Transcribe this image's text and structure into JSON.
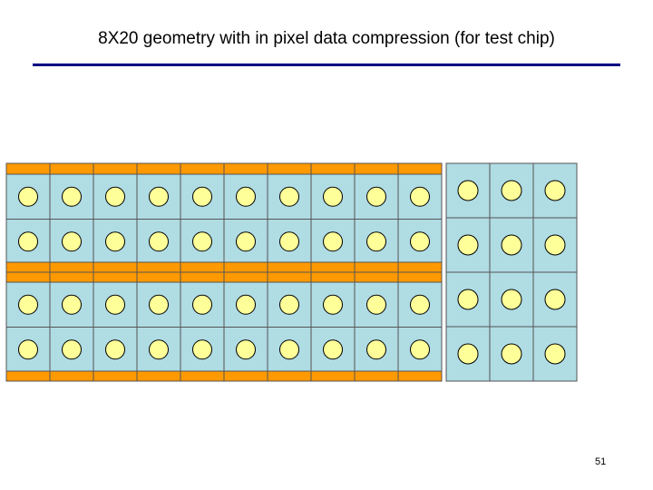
{
  "slide": {
    "title": "8X20 geometry with in pixel data compression (for test chip)",
    "page_number": "51"
  },
  "diagram": {
    "left_block": {
      "columns": 10,
      "rows": 4,
      "bus_bars": "above and below each pair of rows"
    },
    "right_block": {
      "columns": 3,
      "rows": 4,
      "bus_bars": "none"
    },
    "colors": {
      "pixel_fill": "#b0dce4",
      "pixel_border": "#000000",
      "pad_fill": "#ffff99",
      "bus_fill": "#ff9900"
    }
  }
}
